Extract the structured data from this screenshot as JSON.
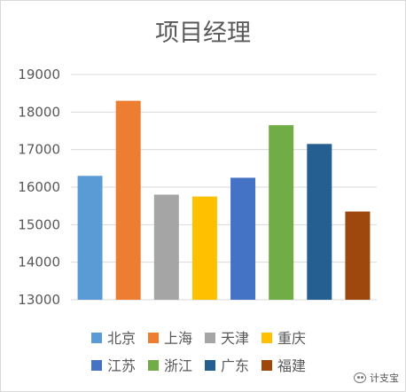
{
  "chart_data": {
    "type": "bar",
    "title": "项目经理",
    "categories": [
      "北京",
      "上海",
      "天津",
      "重庆",
      "江苏",
      "浙江",
      "广东",
      "福建"
    ],
    "values": [
      16300,
      18300,
      15800,
      15750,
      16250,
      17650,
      17150,
      15350
    ],
    "colors": [
      "#5B9BD5",
      "#ED7D31",
      "#A5A5A5",
      "#FFC000",
      "#4472C4",
      "#70AD47",
      "#255E91",
      "#9E480E"
    ],
    "yticks": [
      13000,
      14000,
      15000,
      16000,
      17000,
      18000,
      19000
    ],
    "ylim": [
      13000,
      19000
    ],
    "grid": true,
    "legend": "bottom"
  },
  "watermark": "计支宝"
}
